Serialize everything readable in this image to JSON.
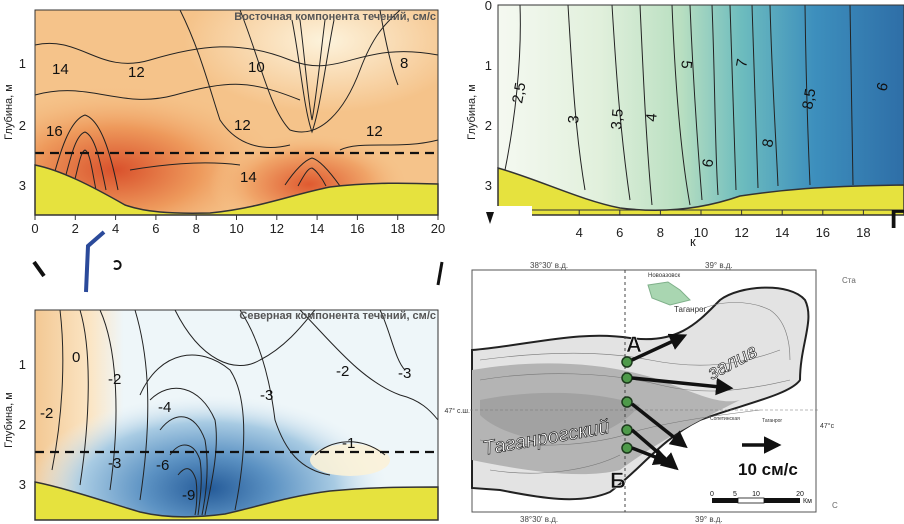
{
  "colors": {
    "warm_low": "#fbe0b4",
    "warm_high": "#d9512c",
    "cool_low": "#f4f9fb",
    "cool_high": "#2f6ea8",
    "bottom": "#e6e23e",
    "land": "#ffffff",
    "sea_deep": "#9a9a9a",
    "gauge": "#8fc39a"
  },
  "panels": {
    "east": {
      "title": "Восточная компонента течений, см/с",
      "ylabel": "Глубина, м",
      "yticks": [
        "1",
        "2",
        "3"
      ],
      "xticks": [
        "0",
        "2",
        "4",
        "6",
        "8",
        "10",
        "12",
        "14",
        "16",
        "18",
        "20"
      ],
      "contour_labels": [
        "14",
        "12",
        "10",
        "8",
        "16",
        "12",
        "12",
        "14"
      ]
    },
    "salinity": {
      "ylabel": "Глубина, м",
      "yticks": [
        "0",
        "1",
        "2",
        "3"
      ],
      "xticks": [
        "4",
        "6",
        "8",
        "10",
        "12",
        "14",
        "16",
        "18"
      ],
      "xlabel_fragment": "к",
      "letter": "Г",
      "contour_labels": [
        "2,5",
        "3",
        "3,5",
        "4",
        "5",
        "7",
        "8,5",
        "6",
        "6",
        "8"
      ]
    },
    "north": {
      "title": "Северная компонента течений, см/с",
      "ylabel": "Глубина, м",
      "yticks": [
        "1",
        "2",
        "3"
      ],
      "contour_labels": [
        "0",
        "-2",
        "-2",
        "-2",
        "-4",
        "-3",
        "-3",
        "-1",
        "-3",
        "-6",
        "-9"
      ]
    }
  },
  "map": {
    "top_coords": [
      "38°30' в.д.",
      "39° в.д."
    ],
    "bottom_coords": [
      "38°30' в.д.",
      "39° в.д."
    ],
    "lat_left": "47° с.ш.",
    "lat_right": "47°с",
    "right_fragments": [
      "Ста",
      "С"
    ],
    "labels": {
      "novoazovsk": "Новоазовск",
      "taganrog": "Таганрог",
      "gulf1": "Таганрогский",
      "gulf2": "залив",
      "point_a": "А",
      "point_b": "Б",
      "small1": "Сопетинская",
      "small2": "Таганрог"
    },
    "scale_label": "10 см/с",
    "km_ticks": [
      "0",
      "5",
      "10",
      "20"
    ],
    "km_unit": "Км"
  },
  "chart_data": [
    {
      "type": "heatmap",
      "title": "Восточная компонента течений, см/с",
      "ylabel": "Глубина, м",
      "xticks": [
        0,
        2,
        4,
        6,
        8,
        10,
        12,
        14,
        16,
        18,
        20
      ],
      "ylim": [
        3.3,
        0
      ],
      "isolines": [
        8,
        10,
        12,
        14,
        16
      ],
      "maxima": [
        {
          "x": 2.5,
          "y": 2.6,
          "value": 18
        },
        {
          "x": 13.8,
          "y": 3.0,
          "value": 16
        }
      ],
      "dashed_depth": 2.4
    },
    {
      "type": "heatmap",
      "ylabel": "Глубина, м",
      "xticks": [
        4,
        6,
        8,
        10,
        12,
        14,
        16,
        18
      ],
      "ylim": [
        3.3,
        0
      ],
      "isolines": [
        2.5,
        3,
        3.5,
        4,
        5,
        6,
        7,
        8,
        8.5
      ]
    },
    {
      "type": "heatmap",
      "title": "Северная компонента течений, см/с",
      "ylabel": "Глубина, м",
      "ylim": [
        3.3,
        0
      ],
      "isolines": [
        0,
        -1,
        -2,
        -3,
        -4,
        -6,
        -9
      ],
      "minima": [
        {
          "x": 8,
          "y": 3.0,
          "value": -9
        }
      ],
      "dashed_depth": 2.4
    }
  ]
}
